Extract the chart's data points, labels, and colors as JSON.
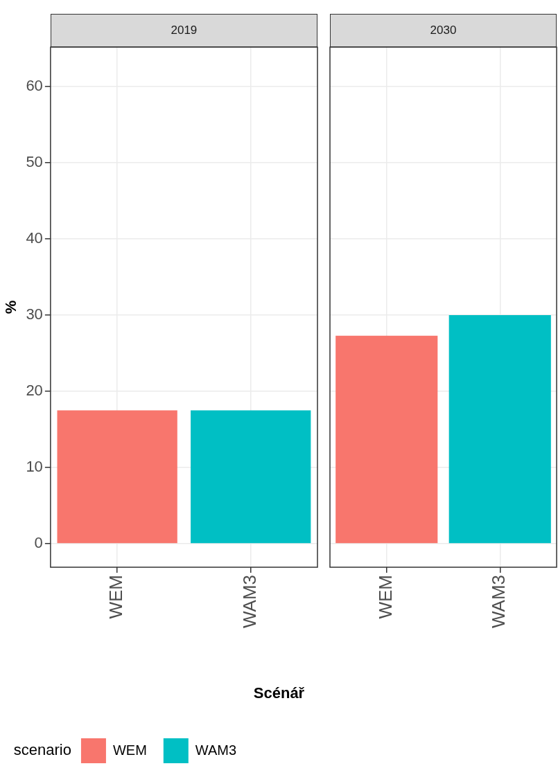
{
  "chart_data": [
    {
      "type": "bar",
      "title": "2019",
      "xlabel": "Scénář",
      "ylabel": "%",
      "legend_title": "scenario",
      "legend": "bottom",
      "grid": true,
      "categories": [
        "WEM",
        "WAM3"
      ],
      "series": [
        {
          "name": "WEM",
          "color": "#f8766d",
          "values": [
            17.5,
            null
          ]
        },
        {
          "name": "WAM3",
          "color": "#00bfc4",
          "values": [
            null,
            17.5
          ]
        }
      ],
      "ylim": [
        -3.1,
        65.2
      ],
      "yticks": [
        0,
        10,
        20,
        30,
        40,
        50,
        60
      ]
    },
    {
      "type": "bar",
      "title": "2030",
      "grid": true,
      "tick_labels": "x",
      "categories": [
        "WEM",
        "WAM3"
      ],
      "series": [
        {
          "color": "#f8766d",
          "values": [
            27.3,
            null
          ]
        },
        {
          "color": "#00bfc4",
          "values": [
            null,
            30
          ]
        }
      ],
      "ylim": [
        -3.1,
        65.2
      ],
      "yticks": [
        0,
        10,
        20,
        30,
        40,
        50,
        60
      ]
    }
  ]
}
